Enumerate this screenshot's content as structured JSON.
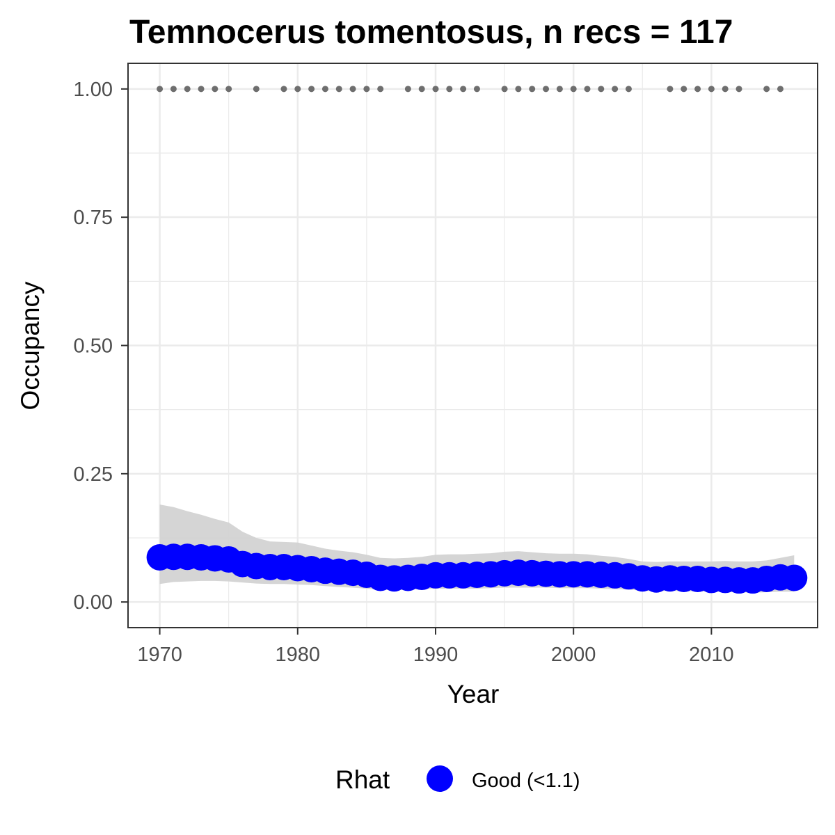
{
  "chart_data": {
    "type": "scatter",
    "title": "Temnocerus tomentosus, n recs = 117",
    "xlabel": "Year",
    "ylabel": "Occupancy",
    "xlim": [
      1967.7,
      2017.7
    ],
    "ylim": [
      -0.05,
      1.05
    ],
    "x_ticks": [
      1970,
      1980,
      1990,
      2000,
      2010
    ],
    "x_tick_labels": [
      "1970",
      "1980",
      "1990",
      "2000",
      "2010"
    ],
    "y_ticks": [
      0,
      0.25,
      0.5,
      0.75,
      1
    ],
    "y_tick_labels": [
      "0.00",
      "0.25",
      "0.50",
      "0.75",
      "1.00"
    ],
    "grid": true,
    "legend_position": "bottom",
    "legend": {
      "title": "Rhat",
      "entries": [
        {
          "label": "Good (<1.1)",
          "color": "#0000ff"
        }
      ]
    },
    "colors": {
      "estimate": "#0000ff",
      "ribbon": "#d3d3d3",
      "observed": "#6e6e6e",
      "grid": "#ebebeb",
      "panel_border": "#333333"
    },
    "series": [
      {
        "name": "Good (<1.1)",
        "role": "estimate",
        "x": [
          1970,
          1971,
          1972,
          1973,
          1974,
          1975,
          1976,
          1977,
          1978,
          1979,
          1980,
          1981,
          1982,
          1983,
          1984,
          1985,
          1986,
          1987,
          1988,
          1989,
          1990,
          1991,
          1992,
          1993,
          1994,
          1995,
          1996,
          1997,
          1998,
          1999,
          2000,
          2001,
          2002,
          2003,
          2004,
          2005,
          2006,
          2007,
          2008,
          2009,
          2010,
          2011,
          2012,
          2013,
          2014,
          2015,
          2016
        ],
        "y": [
          0.087,
          0.088,
          0.088,
          0.087,
          0.085,
          0.083,
          0.074,
          0.07,
          0.068,
          0.068,
          0.066,
          0.064,
          0.061,
          0.059,
          0.057,
          0.053,
          0.047,
          0.046,
          0.047,
          0.049,
          0.052,
          0.052,
          0.052,
          0.053,
          0.054,
          0.056,
          0.057,
          0.056,
          0.055,
          0.054,
          0.054,
          0.054,
          0.053,
          0.052,
          0.05,
          0.046,
          0.044,
          0.046,
          0.045,
          0.045,
          0.043,
          0.043,
          0.042,
          0.042,
          0.045,
          0.048,
          0.047
        ]
      },
      {
        "role": "ci_lower",
        "x": [
          1970,
          1971,
          1972,
          1973,
          1974,
          1975,
          1976,
          1977,
          1978,
          1979,
          1980,
          1981,
          1982,
          1983,
          1984,
          1985,
          1986,
          1987,
          1988,
          1989,
          1990,
          1991,
          1992,
          1993,
          1994,
          1995,
          1996,
          1997,
          1998,
          1999,
          2000,
          2001,
          2002,
          2003,
          2004,
          2005,
          2006,
          2007,
          2008,
          2009,
          2010,
          2011,
          2012,
          2013,
          2014,
          2015,
          2016
        ],
        "y": [
          0.035,
          0.039,
          0.04,
          0.041,
          0.041,
          0.04,
          0.038,
          0.036,
          0.035,
          0.035,
          0.034,
          0.033,
          0.031,
          0.029,
          0.028,
          0.026,
          0.024,
          0.023,
          0.024,
          0.025,
          0.026,
          0.026,
          0.026,
          0.026,
          0.027,
          0.028,
          0.028,
          0.028,
          0.028,
          0.027,
          0.027,
          0.027,
          0.026,
          0.025,
          0.024,
          0.022,
          0.021,
          0.022,
          0.021,
          0.021,
          0.02,
          0.019,
          0.019,
          0.018,
          0.019,
          0.02,
          0.02
        ]
      },
      {
        "role": "ci_upper",
        "x": [
          1970,
          1971,
          1972,
          1973,
          1974,
          1975,
          1976,
          1977,
          1978,
          1979,
          1980,
          1981,
          1982,
          1983,
          1984,
          1985,
          1986,
          1987,
          1988,
          1989,
          1990,
          1991,
          1992,
          1993,
          1994,
          1995,
          1996,
          1997,
          1998,
          1999,
          2000,
          2001,
          2002,
          2003,
          2004,
          2005,
          2006,
          2007,
          2008,
          2009,
          2010,
          2011,
          2012,
          2013,
          2014,
          2015,
          2016
        ],
        "y": [
          0.19,
          0.185,
          0.177,
          0.17,
          0.162,
          0.155,
          0.137,
          0.125,
          0.118,
          0.117,
          0.116,
          0.11,
          0.104,
          0.1,
          0.097,
          0.092,
          0.086,
          0.085,
          0.086,
          0.088,
          0.092,
          0.093,
          0.093,
          0.094,
          0.095,
          0.098,
          0.099,
          0.097,
          0.095,
          0.094,
          0.094,
          0.093,
          0.09,
          0.088,
          0.084,
          0.079,
          0.078,
          0.079,
          0.079,
          0.079,
          0.079,
          0.08,
          0.079,
          0.079,
          0.081,
          0.086,
          0.091
        ]
      },
      {
        "role": "observed",
        "y_value": 1,
        "x": [
          1970,
          1971,
          1972,
          1973,
          1974,
          1975,
          1977,
          1979,
          1980,
          1981,
          1982,
          1983,
          1984,
          1985,
          1986,
          1988,
          1989,
          1990,
          1991,
          1992,
          1993,
          1995,
          1996,
          1997,
          1998,
          1999,
          2000,
          2001,
          2002,
          2003,
          2004,
          2007,
          2008,
          2009,
          2010,
          2011,
          2012,
          2014,
          2015
        ]
      }
    ]
  }
}
